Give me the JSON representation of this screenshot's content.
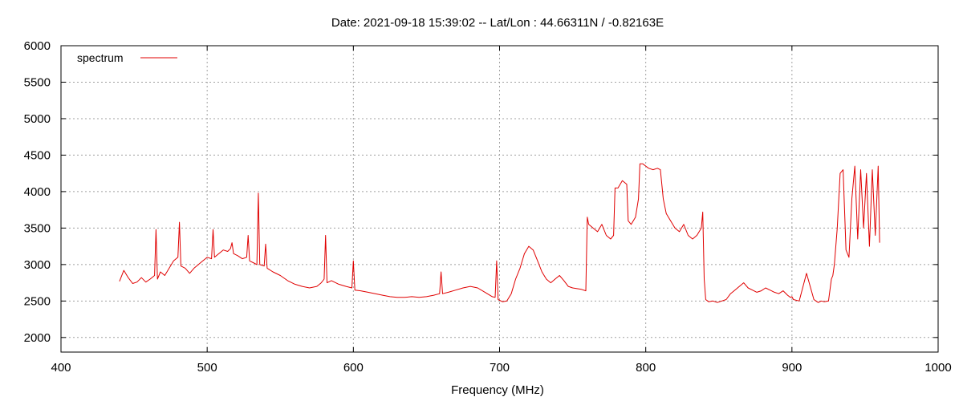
{
  "chart_data": {
    "type": "line",
    "title": "Date: 2021-09-18 15:39:02  --  Lat/Lon : 44.66311N / -0.82163E",
    "xlabel": "Frequency (MHz)",
    "ylabel": "",
    "xlim": [
      400,
      1000
    ],
    "ylim": [
      1800,
      6000
    ],
    "xticks": [
      400,
      500,
      600,
      700,
      800,
      900,
      1000
    ],
    "yticks": [
      2000,
      2500,
      3000,
      3500,
      4000,
      4500,
      5000,
      5500,
      6000
    ],
    "grid": true,
    "legend_position": "top-left",
    "series": [
      {
        "name": "spectrum",
        "color": "#e00000",
        "x": [
          440,
          443,
          446,
          449,
          452,
          455,
          458,
          461,
          464,
          465,
          466,
          468,
          471,
          474,
          477,
          480,
          481,
          482,
          485,
          488,
          491,
          494,
          497,
          500,
          503,
          504,
          505,
          508,
          511,
          514,
          516,
          517,
          518,
          521,
          524,
          527,
          528,
          529,
          532,
          534,
          535,
          536,
          539,
          540,
          541,
          545,
          550,
          555,
          560,
          565,
          570,
          575,
          578,
          580,
          581,
          582,
          585,
          590,
          595,
          599,
          600,
          601,
          605,
          610,
          615,
          620,
          625,
          630,
          635,
          640,
          645,
          650,
          655,
          659,
          660,
          661,
          665,
          670,
          675,
          680,
          685,
          690,
          695,
          697,
          698,
          699,
          702,
          705,
          708,
          711,
          714,
          717,
          720,
          723,
          726,
          729,
          732,
          735,
          738,
          741,
          744,
          747,
          750,
          753,
          756,
          759,
          760,
          761,
          764,
          767,
          770,
          773,
          776,
          778,
          779,
          781,
          784,
          787,
          788,
          790,
          793,
          795,
          796,
          798,
          800,
          802,
          805,
          808,
          810,
          812,
          814,
          817,
          820,
          823,
          826,
          829,
          832,
          835,
          838,
          839,
          840,
          841,
          843,
          846,
          849,
          852,
          855,
          858,
          861,
          864,
          867,
          870,
          873,
          876,
          879,
          882,
          885,
          888,
          891,
          894,
          897,
          899,
          900,
          901,
          905,
          910,
          915,
          918,
          920,
          922,
          925,
          927,
          928,
          929,
          931,
          933,
          935,
          937,
          939,
          941,
          943,
          945,
          947,
          949,
          951,
          953,
          955,
          957,
          959,
          960
        ],
        "values": [
          2770,
          2920,
          2820,
          2740,
          2760,
          2820,
          2760,
          2800,
          2850,
          3480,
          2800,
          2900,
          2850,
          2950,
          3050,
          3100,
          3580,
          2980,
          2950,
          2880,
          2950,
          3000,
          3050,
          3100,
          3080,
          3480,
          3100,
          3150,
          3200,
          3180,
          3220,
          3300,
          3150,
          3120,
          3080,
          3100,
          3400,
          3050,
          3020,
          3000,
          3980,
          3000,
          2980,
          3280,
          2950,
          2900,
          2850,
          2780,
          2730,
          2700,
          2680,
          2700,
          2750,
          2800,
          3400,
          2750,
          2780,
          2730,
          2700,
          2680,
          3050,
          2650,
          2640,
          2620,
          2600,
          2580,
          2560,
          2550,
          2550,
          2560,
          2550,
          2560,
          2580,
          2600,
          2900,
          2600,
          2620,
          2650,
          2680,
          2700,
          2680,
          2620,
          2560,
          2550,
          3050,
          2520,
          2490,
          2500,
          2600,
          2800,
          2950,
          3150,
          3250,
          3200,
          3050,
          2900,
          2800,
          2750,
          2800,
          2850,
          2780,
          2700,
          2680,
          2670,
          2660,
          2640,
          3650,
          3550,
          3500,
          3450,
          3550,
          3400,
          3350,
          3400,
          4050,
          4050,
          4150,
          4100,
          3600,
          3550,
          3650,
          3900,
          4380,
          4380,
          4350,
          4320,
          4300,
          4320,
          4300,
          3900,
          3700,
          3600,
          3500,
          3450,
          3550,
          3400,
          3350,
          3400,
          3500,
          3720,
          2800,
          2520,
          2490,
          2500,
          2480,
          2500,
          2520,
          2600,
          2650,
          2700,
          2750,
          2680,
          2650,
          2620,
          2640,
          2680,
          2650,
          2620,
          2600,
          2640,
          2580,
          2550,
          2560,
          2520,
          2500,
          2880,
          2520,
          2480,
          2500,
          2490,
          2500,
          2800,
          2850,
          3000,
          3500,
          4250,
          4300,
          3200,
          3100,
          3900,
          4350,
          3350,
          4300,
          3500,
          4250,
          3250,
          4300,
          3400,
          4350,
          3300
        ]
      }
    ]
  }
}
